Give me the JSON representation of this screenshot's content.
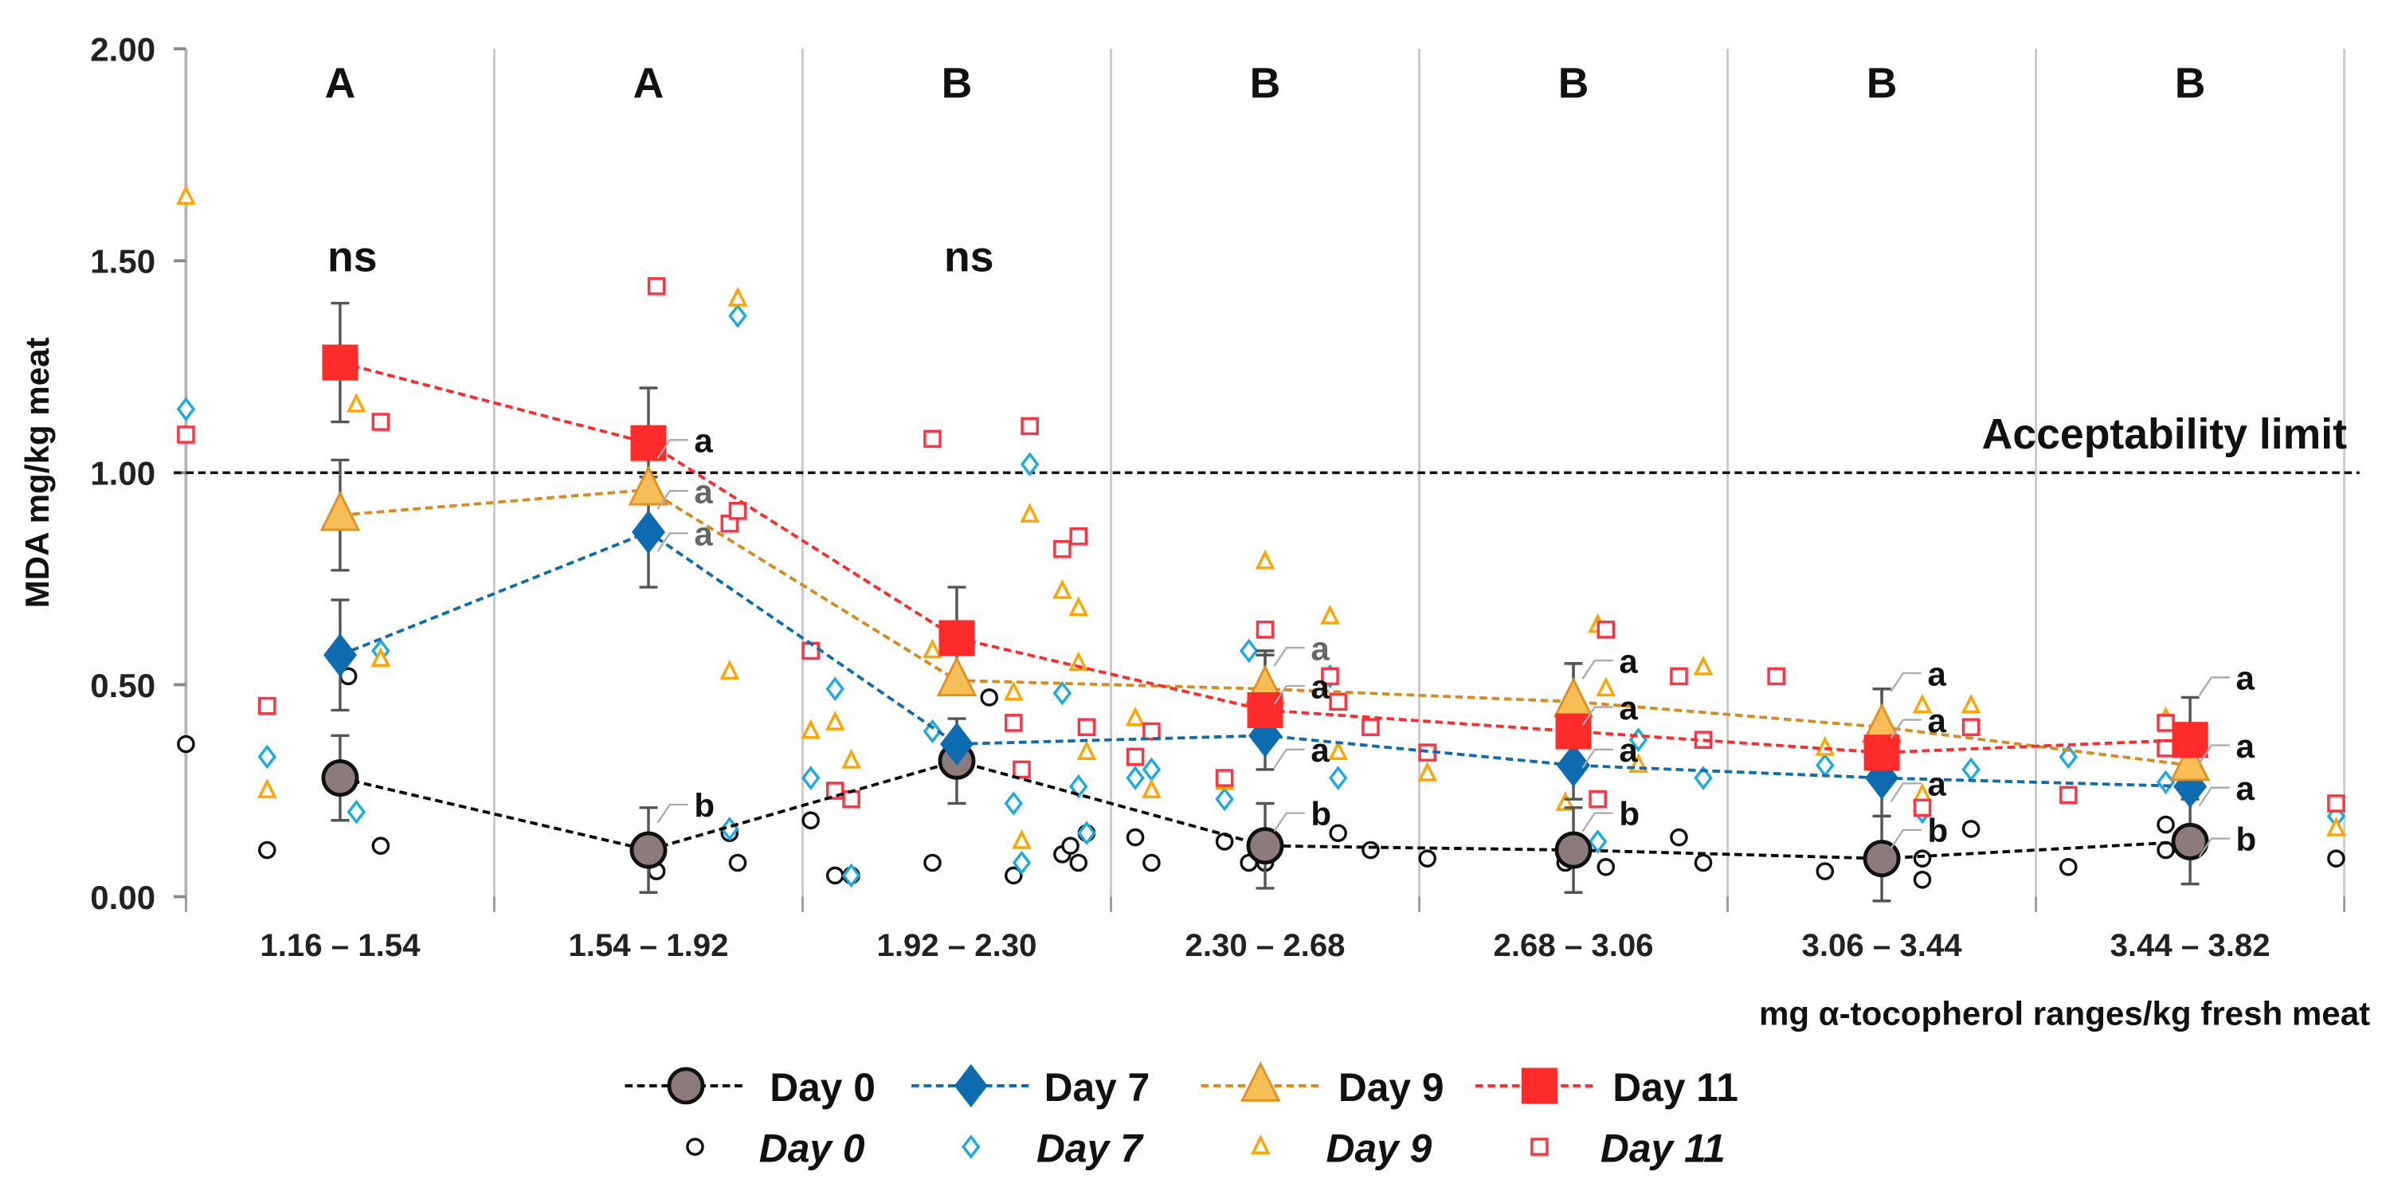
{
  "chart_data": {
    "type": "scatter",
    "ylabel": "MDA mg/kg meat",
    "xlabel": "mg α-tocopherol ranges/kg fresh meat",
    "ylim": [
      0,
      2
    ],
    "yticks": [
      "0.00",
      "0.50",
      "1.00",
      "1.50",
      "2.00"
    ],
    "xlim": [
      1.16,
      3.82
    ],
    "grid": "vertical dividers between ranges",
    "categories": [
      "1.16 – 1.54",
      "1.54 – 1.92",
      "1.92 – 2.30",
      "2.30 – 2.68",
      "2.68 – 3.06",
      "3.06 – 3.44",
      "3.44 – 3.82"
    ],
    "group_letters": [
      "A",
      "A",
      "B",
      "B",
      "B",
      "B",
      "B"
    ],
    "ns_labels": [
      {
        "group": 0,
        "text": "ns"
      },
      {
        "group": 2,
        "text": "ns"
      }
    ],
    "reference_line": {
      "y": 1.0,
      "label": "Acceptability limit"
    },
    "mean_series": [
      {
        "name": "Day 0",
        "color": "#000000",
        "fill": "#8c7b7b",
        "marker": "circle",
        "values": [
          0.28,
          0.11,
          0.32,
          0.12,
          0.11,
          0.09,
          0.13
        ],
        "error": [
          0.1,
          0.1,
          0.1,
          0.1,
          0.1,
          0.1,
          0.1
        ]
      },
      {
        "name": "Day 7",
        "color": "#0d6bb0",
        "fill": "#0d6bb0",
        "marker": "diamond",
        "values": [
          0.57,
          0.86,
          0.36,
          0.38,
          0.31,
          0.28,
          0.26
        ],
        "error": [
          0.13,
          0.13,
          0.0,
          0.0,
          0.0,
          0.0,
          0.0
        ]
      },
      {
        "name": "Day 9",
        "color": "#d98a1a",
        "fill": "#f7be55",
        "marker": "triangle",
        "values": [
          0.9,
          0.96,
          0.51,
          0.49,
          0.46,
          0.4,
          0.31
        ],
        "error": [
          0.13,
          0.0,
          0.0,
          0.08,
          0.09,
          0.09,
          0.0
        ]
      },
      {
        "name": "Day 11",
        "color": "#ff2a2a",
        "fill": "#ff2a2a",
        "marker": "square",
        "values": [
          1.26,
          1.07,
          0.61,
          0.44,
          0.39,
          0.34,
          0.37
        ],
        "error": [
          0.14,
          0.13,
          0.12,
          0.14,
          0.16,
          0.15,
          0.1
        ]
      }
    ],
    "individual_series": [
      {
        "name": "Day 0",
        "color": "#111111",
        "marker": "circle",
        "points": [
          [
            1.16,
            0.36
          ],
          [
            1.26,
            0.11
          ],
          [
            1.36,
            0.52
          ],
          [
            1.4,
            0.12
          ],
          [
            1.74,
            0.06
          ],
          [
            1.83,
            0.15
          ],
          [
            1.84,
            0.08
          ],
          [
            1.93,
            0.18
          ],
          [
            1.96,
            0.05
          ],
          [
            1.98,
            0.05
          ],
          [
            2.08,
            0.08
          ],
          [
            2.15,
            0.47
          ],
          [
            2.18,
            0.05
          ],
          [
            2.24,
            0.1
          ],
          [
            2.25,
            0.12
          ],
          [
            2.26,
            0.08
          ],
          [
            2.27,
            0.15
          ],
          [
            2.33,
            0.14
          ],
          [
            2.35,
            0.08
          ],
          [
            2.44,
            0.13
          ],
          [
            2.47,
            0.08
          ],
          [
            2.49,
            0.08
          ],
          [
            2.58,
            0.15
          ],
          [
            2.62,
            0.11
          ],
          [
            2.69,
            0.09
          ],
          [
            2.86,
            0.08
          ],
          [
            2.91,
            0.07
          ],
          [
            3.0,
            0.14
          ],
          [
            3.03,
            0.08
          ],
          [
            3.18,
            0.06
          ],
          [
            3.3,
            0.09
          ],
          [
            3.3,
            0.04
          ],
          [
            3.36,
            0.16
          ],
          [
            3.48,
            0.07
          ],
          [
            3.6,
            0.11
          ],
          [
            3.6,
            0.17
          ],
          [
            3.81,
            0.09
          ]
        ]
      },
      {
        "name": "Day 7",
        "color": "#1aabe0",
        "marker": "diamond",
        "points": [
          [
            1.16,
            1.15
          ],
          [
            1.26,
            0.33
          ],
          [
            1.37,
            0.2
          ],
          [
            1.4,
            0.58
          ],
          [
            1.73,
            0.88
          ],
          [
            1.83,
            0.16
          ],
          [
            1.84,
            1.37
          ],
          [
            1.93,
            0.28
          ],
          [
            1.96,
            0.49
          ],
          [
            1.98,
            0.05
          ],
          [
            2.08,
            0.39
          ],
          [
            2.18,
            0.22
          ],
          [
            2.19,
            0.08
          ],
          [
            2.2,
            1.02
          ],
          [
            2.24,
            0.48
          ],
          [
            2.26,
            0.26
          ],
          [
            2.27,
            0.15
          ],
          [
            2.33,
            0.28
          ],
          [
            2.35,
            0.3
          ],
          [
            2.44,
            0.23
          ],
          [
            2.47,
            0.58
          ],
          [
            2.57,
            0.52
          ],
          [
            2.58,
            0.28
          ],
          [
            2.9,
            0.13
          ],
          [
            2.95,
            0.37
          ],
          [
            3.03,
            0.28
          ],
          [
            3.18,
            0.31
          ],
          [
            3.3,
            0.2
          ],
          [
            3.36,
            0.3
          ],
          [
            3.48,
            0.33
          ],
          [
            3.6,
            0.27
          ],
          [
            3.81,
            0.19
          ]
        ]
      },
      {
        "name": "Day 9",
        "color": "#ffa500",
        "marker": "triangle",
        "points": [
          [
            1.16,
            1.65
          ],
          [
            1.26,
            0.25
          ],
          [
            1.37,
            1.16
          ],
          [
            1.4,
            0.56
          ],
          [
            1.83,
            0.53
          ],
          [
            1.84,
            1.41
          ],
          [
            1.93,
            0.39
          ],
          [
            1.96,
            0.41
          ],
          [
            1.98,
            0.32
          ],
          [
            2.08,
            0.58
          ],
          [
            2.18,
            0.48
          ],
          [
            2.19,
            0.13
          ],
          [
            2.2,
            0.9
          ],
          [
            2.24,
            0.72
          ],
          [
            2.26,
            0.68
          ],
          [
            2.26,
            0.55
          ],
          [
            2.27,
            0.34
          ],
          [
            2.33,
            0.42
          ],
          [
            2.35,
            0.25
          ],
          [
            2.44,
            0.27
          ],
          [
            2.49,
            0.79
          ],
          [
            2.57,
            0.66
          ],
          [
            2.58,
            0.34
          ],
          [
            2.69,
            0.29
          ],
          [
            2.86,
            0.22
          ],
          [
            2.9,
            0.64
          ],
          [
            2.91,
            0.49
          ],
          [
            2.95,
            0.31
          ],
          [
            3.03,
            0.54
          ],
          [
            3.18,
            0.35
          ],
          [
            3.3,
            0.24
          ],
          [
            3.3,
            0.45
          ],
          [
            3.36,
            0.45
          ],
          [
            3.6,
            0.42
          ],
          [
            3.81,
            0.16
          ]
        ]
      },
      {
        "name": "Day 11",
        "color": "#ff3344",
        "marker": "square",
        "points": [
          [
            1.16,
            1.09
          ],
          [
            1.26,
            0.45
          ],
          [
            1.4,
            1.12
          ],
          [
            1.74,
            1.44
          ],
          [
            1.83,
            0.88
          ],
          [
            1.84,
            0.91
          ],
          [
            1.93,
            0.58
          ],
          [
            1.96,
            0.25
          ],
          [
            1.98,
            0.23
          ],
          [
            2.08,
            1.08
          ],
          [
            2.18,
            0.41
          ],
          [
            2.19,
            0.3
          ],
          [
            2.2,
            1.11
          ],
          [
            2.24,
            0.82
          ],
          [
            2.26,
            0.85
          ],
          [
            2.27,
            0.4
          ],
          [
            2.33,
            0.33
          ],
          [
            2.35,
            0.39
          ],
          [
            2.44,
            0.28
          ],
          [
            2.49,
            0.63
          ],
          [
            2.57,
            0.52
          ],
          [
            2.58,
            0.46
          ],
          [
            2.62,
            0.4
          ],
          [
            2.69,
            0.34
          ],
          [
            2.9,
            0.23
          ],
          [
            2.91,
            0.63
          ],
          [
            3.0,
            0.52
          ],
          [
            3.03,
            0.37
          ],
          [
            3.12,
            0.52
          ],
          [
            3.3,
            0.21
          ],
          [
            3.36,
            0.4
          ],
          [
            3.48,
            0.24
          ],
          [
            3.6,
            0.41
          ],
          [
            3.6,
            0.35
          ],
          [
            3.81,
            0.22
          ]
        ]
      }
    ],
    "significance_letters": [
      {
        "group": 1,
        "y": 1.07,
        "text": "a",
        "grey": false
      },
      {
        "group": 1,
        "y": 0.95,
        "text": "a",
        "grey": true
      },
      {
        "group": 1,
        "y": 0.85,
        "text": "a",
        "grey": true
      },
      {
        "group": 1,
        "y": 0.21,
        "text": "b",
        "grey": false
      },
      {
        "group": 3,
        "y": 0.58,
        "text": "a",
        "grey": true
      },
      {
        "group": 3,
        "y": 0.49,
        "text": "a",
        "grey": false
      },
      {
        "group": 3,
        "y": 0.34,
        "text": "a",
        "grey": false
      },
      {
        "group": 3,
        "y": 0.19,
        "text": "b",
        "grey": false
      },
      {
        "group": 4,
        "y": 0.55,
        "text": "a",
        "grey": false
      },
      {
        "group": 4,
        "y": 0.44,
        "text": "a",
        "grey": false
      },
      {
        "group": 4,
        "y": 0.34,
        "text": "a",
        "grey": false
      },
      {
        "group": 4,
        "y": 0.19,
        "text": "b",
        "grey": false
      },
      {
        "group": 5,
        "y": 0.52,
        "text": "a",
        "grey": false
      },
      {
        "group": 5,
        "y": 0.41,
        "text": "a",
        "grey": false
      },
      {
        "group": 5,
        "y": 0.26,
        "text": "a",
        "grey": false
      },
      {
        "group": 5,
        "y": 0.15,
        "text": "b",
        "grey": false
      },
      {
        "group": 6,
        "y": 0.51,
        "text": "a",
        "grey": false
      },
      {
        "group": 6,
        "y": 0.35,
        "text": "a",
        "grey": false
      },
      {
        "group": 6,
        "y": 0.25,
        "text": "a",
        "grey": false
      },
      {
        "group": 6,
        "y": 0.13,
        "text": "b",
        "grey": false
      }
    ],
    "legend": {
      "placement": "bottom",
      "mean_labels": [
        "Day 0",
        "Day 7",
        "Day 9",
        "Day 11"
      ],
      "individual_labels": [
        "Day 0",
        "Day 7",
        "Day 9",
        "Day 11"
      ]
    }
  }
}
